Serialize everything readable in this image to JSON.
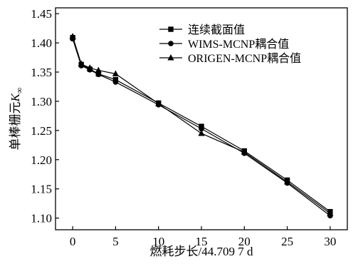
{
  "chart_data": {
    "type": "line",
    "title": "",
    "xlabel": "燃耗步长/44.709 7 d",
    "ylabel": "单棒栅元",
    "ylabel_symbol": "K",
    "ylabel_subscript": "∞",
    "xlim": [
      -2,
      32
    ],
    "ylim": [
      1.08,
      1.46
    ],
    "x_ticks": [
      0,
      5,
      10,
      15,
      20,
      25,
      30
    ],
    "y_ticks": [
      1.1,
      1.15,
      1.2,
      1.25,
      1.3,
      1.35,
      1.4,
      1.45
    ],
    "x_tick_labels": [
      "0",
      "5",
      "10",
      "15",
      "20",
      "25",
      "30"
    ],
    "y_tick_labels": [
      "1.10",
      "1.15",
      "1.20",
      "1.25",
      "1.30",
      "1.35",
      "1.40",
      "1.45"
    ],
    "legend_position": "top-right",
    "grid": false,
    "series": [
      {
        "name": "连续截面值",
        "marker": "square",
        "x": [
          0,
          1,
          2,
          3,
          5,
          10,
          15,
          20,
          25,
          30
        ],
        "y": [
          1.409,
          1.363,
          1.355,
          1.347,
          1.337,
          1.297,
          1.257,
          1.215,
          1.165,
          1.111
        ]
      },
      {
        "name": "WIMS-MCNP耦合值",
        "marker": "circle",
        "x": [
          0,
          1,
          2,
          3,
          5,
          10,
          15,
          20,
          25,
          30
        ],
        "y": [
          1.407,
          1.361,
          1.354,
          1.346,
          1.333,
          1.294,
          1.253,
          1.211,
          1.16,
          1.104
        ]
      },
      {
        "name": "ORIGEN-MCNP耦合值",
        "marker": "triangle",
        "x": [
          0,
          1,
          2,
          3,
          5,
          10,
          15,
          20,
          25,
          30
        ],
        "y": [
          1.411,
          1.364,
          1.357,
          1.353,
          1.347,
          1.296,
          1.245,
          1.213,
          1.162,
          1.108
        ]
      }
    ]
  }
}
